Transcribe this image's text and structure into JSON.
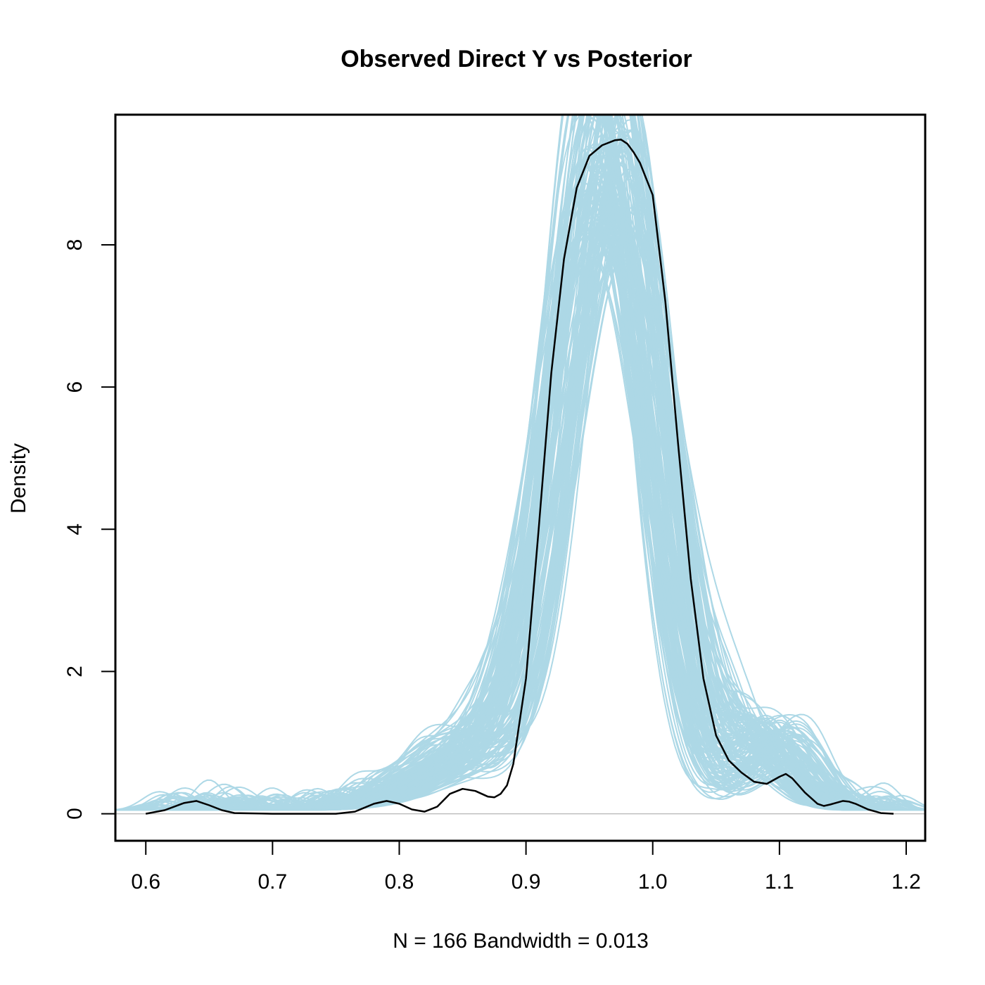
{
  "chart_data": {
    "type": "line",
    "title": "Observed Direct Y vs Posterior",
    "xlabel": "N = 166   Bandwidth = 0.013",
    "ylabel": "Density",
    "xlim": [
      0.576,
      1.215
    ],
    "ylim": [
      -0.38,
      9.83
    ],
    "x_ticks": [
      0.6,
      0.7,
      0.8,
      0.9,
      1.0,
      1.1,
      1.2
    ],
    "x_tick_labels": [
      "0.6",
      "0.7",
      "0.8",
      "0.9",
      "1.0",
      "1.1",
      "1.2"
    ],
    "y_ticks": [
      0,
      2,
      4,
      6,
      8
    ],
    "y_tick_labels": [
      "0",
      "2",
      "4",
      "6",
      "8"
    ],
    "grid": false,
    "legend": "none",
    "colors": {
      "observed": "#000000",
      "posterior": "#add8e6",
      "baseline": "#bebebe"
    },
    "observed_series": {
      "x": [
        0.6,
        0.615,
        0.63,
        0.64,
        0.65,
        0.66,
        0.67,
        0.7,
        0.75,
        0.765,
        0.78,
        0.79,
        0.8,
        0.81,
        0.82,
        0.83,
        0.84,
        0.85,
        0.86,
        0.87,
        0.875,
        0.88,
        0.885,
        0.89,
        0.9,
        0.91,
        0.92,
        0.93,
        0.94,
        0.95,
        0.96,
        0.97,
        0.975,
        0.98,
        0.985,
        0.99,
        1.0,
        1.01,
        1.02,
        1.03,
        1.04,
        1.05,
        1.06,
        1.07,
        1.08,
        1.09,
        1.1,
        1.105,
        1.11,
        1.12,
        1.13,
        1.135,
        1.14,
        1.15,
        1.155,
        1.16,
        1.17,
        1.18,
        1.19
      ],
      "y": [
        0.0,
        0.05,
        0.15,
        0.18,
        0.12,
        0.05,
        0.01,
        0.0,
        0.0,
        0.03,
        0.14,
        0.18,
        0.14,
        0.06,
        0.03,
        0.1,
        0.28,
        0.35,
        0.32,
        0.24,
        0.23,
        0.28,
        0.4,
        0.7,
        1.9,
        4.0,
        6.2,
        7.8,
        8.8,
        9.25,
        9.4,
        9.47,
        9.48,
        9.42,
        9.3,
        9.15,
        8.7,
        7.2,
        5.2,
        3.3,
        1.9,
        1.1,
        0.75,
        0.58,
        0.45,
        0.42,
        0.52,
        0.56,
        0.5,
        0.3,
        0.14,
        0.11,
        0.13,
        0.18,
        0.17,
        0.14,
        0.06,
        0.01,
        0.0
      ]
    },
    "posterior_draws": 150
  }
}
